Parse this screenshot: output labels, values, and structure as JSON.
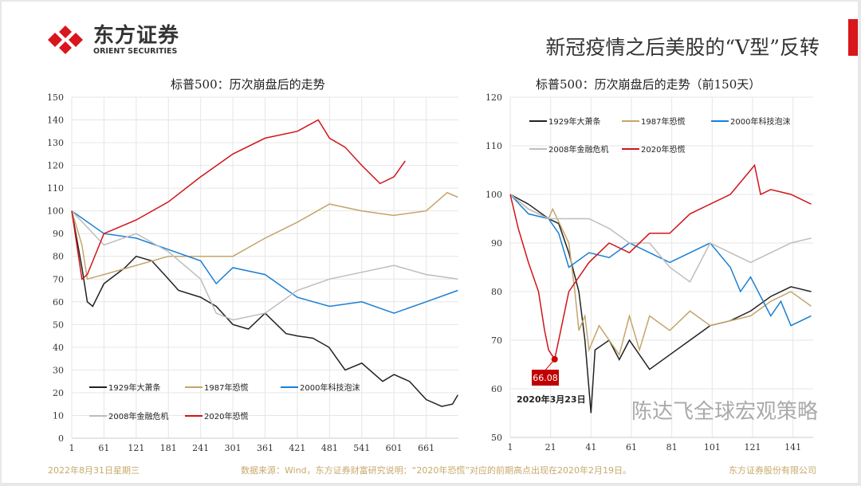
{
  "header": {
    "logo_cn": "东方证券",
    "logo_en": "ORIENT SECURITIES",
    "title": "新冠疫情之后美股的“V型”反转",
    "accent": "#d8161c"
  },
  "footer": {
    "date": "2022年8月31日星期三",
    "source": "数据来源：Wind，东方证券财富研究说明：“2020年恐慌”对应的前期高点出现在2020年2月19日。",
    "company": "东方证券股份有限公司"
  },
  "watermark": "陈达飞全球宏观策略",
  "chart_data": [
    {
      "type": "line",
      "title": "标普500：历次崩盘后的走势",
      "ylim": [
        0,
        150
      ],
      "yticks": [
        0,
        10,
        20,
        30,
        40,
        50,
        60,
        70,
        80,
        90,
        100,
        110,
        120,
        130,
        140,
        150
      ],
      "xlim": [
        1,
        721
      ],
      "xticks": [
        1,
        61,
        121,
        181,
        241,
        301,
        361,
        421,
        481,
        541,
        601,
        661
      ],
      "grid": true,
      "legend": "bottom-left",
      "series": [
        {
          "name": "1929年大萧条",
          "color": "#222222",
          "x": [
            1,
            20,
            30,
            40,
            61,
            100,
            121,
            150,
            181,
            200,
            241,
            270,
            301,
            330,
            361,
            400,
            421,
            450,
            480,
            510,
            541,
            580,
            601,
            630,
            661,
            690,
            710,
            720
          ],
          "y": [
            100,
            75,
            60,
            58,
            68,
            75,
            80,
            78,
            70,
            65,
            62,
            58,
            50,
            48,
            55,
            46,
            45,
            44,
            40,
            30,
            33,
            25,
            28,
            25,
            17,
            14,
            15,
            19
          ]
        },
        {
          "name": "1987年恐慌",
          "color": "#c4a56b",
          "x": [
            1,
            20,
            30,
            61,
            121,
            181,
            241,
            301,
            361,
            421,
            481,
            541,
            600,
            661,
            700,
            720
          ],
          "y": [
            100,
            85,
            70,
            72,
            76,
            80,
            80,
            80,
            88,
            95,
            103,
            100,
            98,
            100,
            108,
            106
          ]
        },
        {
          "name": "2000年科技泡沫",
          "color": "#1a7fd4",
          "x": [
            1,
            61,
            121,
            181,
            241,
            270,
            301,
            361,
            421,
            481,
            541,
            601,
            661,
            720
          ],
          "y": [
            100,
            90,
            88,
            83,
            78,
            68,
            75,
            72,
            62,
            58,
            60,
            55,
            60,
            65
          ]
        },
        {
          "name": "2008年金融危机",
          "color": "#bdbdbd",
          "x": [
            1,
            61,
            121,
            181,
            241,
            270,
            301,
            361,
            421,
            481,
            541,
            601,
            661,
            720
          ],
          "y": [
            100,
            85,
            90,
            82,
            70,
            55,
            52,
            55,
            65,
            70,
            73,
            76,
            72,
            70
          ]
        },
        {
          "name": "2020年恐慌",
          "color": "#d0141a",
          "x": [
            1,
            20,
            30,
            61,
            121,
            181,
            241,
            301,
            361,
            421,
            460,
            481,
            510,
            541,
            575,
            601,
            622
          ],
          "y": [
            100,
            70,
            72,
            90,
            96,
            104,
            115,
            125,
            132,
            135,
            140,
            132,
            128,
            120,
            112,
            115,
            122
          ]
        }
      ]
    },
    {
      "type": "line",
      "title": "标普500：历次崩盘后的走势（前150天）",
      "ylim": [
        50,
        120
      ],
      "yticks": [
        50,
        60,
        70,
        80,
        90,
        100,
        110,
        120
      ],
      "xlim": [
        1,
        151
      ],
      "xticks": [
        1,
        21,
        41,
        61,
        81,
        101,
        121,
        141
      ],
      "grid": true,
      "legend": "top-left",
      "annotation": {
        "x": 23,
        "y": 66.08,
        "label": "66.08",
        "date": "2020年3月23日"
      },
      "series": [
        {
          "name": "1929年大萧条",
          "color": "#222222",
          "x": [
            1,
            10,
            20,
            25,
            30,
            35,
            38,
            40,
            41,
            43,
            50,
            55,
            60,
            70,
            80,
            90,
            100,
            110,
            120,
            130,
            140,
            150
          ],
          "y": [
            100,
            98,
            95,
            94,
            88,
            80,
            70,
            60,
            55,
            68,
            70,
            66,
            70,
            64,
            67,
            70,
            73,
            74,
            76,
            79,
            81,
            80
          ]
        },
        {
          "name": "1987年恐慌",
          "color": "#c4a56b",
          "x": [
            1,
            10,
            20,
            22,
            30,
            33,
            35,
            38,
            40,
            45,
            50,
            55,
            60,
            65,
            70,
            80,
            90,
            100,
            110,
            120,
            130,
            140,
            150
          ],
          "y": [
            100,
            97,
            95,
            97,
            90,
            80,
            72,
            75,
            68,
            73,
            70,
            67,
            75,
            68,
            75,
            72,
            76,
            73,
            74,
            75,
            78,
            80,
            77
          ]
        },
        {
          "name": "2000年科技泡沫",
          "color": "#1a7fd4",
          "x": [
            1,
            10,
            20,
            25,
            30,
            40,
            50,
            60,
            70,
            80,
            90,
            100,
            110,
            115,
            120,
            130,
            135,
            140,
            150
          ],
          "y": [
            100,
            96,
            95,
            92,
            85,
            88,
            87,
            90,
            88,
            86,
            88,
            90,
            85,
            80,
            83,
            75,
            78,
            73,
            75
          ]
        },
        {
          "name": "2008年金融危机",
          "color": "#bdbdbd",
          "x": [
            1,
            10,
            20,
            30,
            40,
            50,
            60,
            70,
            80,
            90,
            100,
            110,
            120,
            130,
            140,
            150
          ],
          "y": [
            100,
            97,
            95,
            95,
            95,
            93,
            90,
            90,
            85,
            82,
            90,
            88,
            86,
            88,
            90,
            91
          ]
        },
        {
          "name": "2020年恐慌",
          "color": "#d0141a",
          "x": [
            1,
            5,
            10,
            15,
            18,
            20,
            23,
            25,
            30,
            40,
            50,
            60,
            70,
            80,
            90,
            100,
            110,
            120,
            122,
            125,
            130,
            140,
            150
          ],
          "y": [
            100,
            93,
            86,
            80,
            72,
            68,
            66.08,
            70,
            80,
            86,
            90,
            88,
            92,
            92,
            96,
            98,
            100,
            105,
            106,
            100,
            101,
            100,
            98
          ]
        }
      ]
    }
  ]
}
